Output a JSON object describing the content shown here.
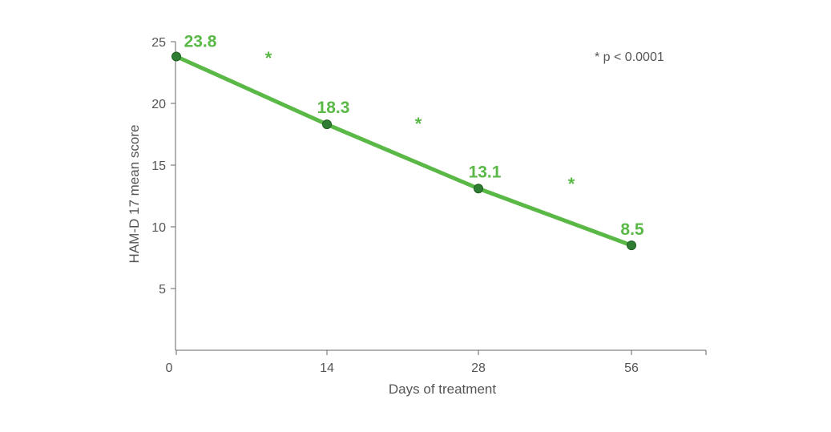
{
  "chart_data": {
    "type": "line",
    "xlabel": "Days of treatment",
    "ylabel": "HAM-D 17  mean score",
    "x_categories": [
      "0",
      "14",
      "28",
      "56"
    ],
    "ylim": [
      0,
      25
    ],
    "y_ticks": [
      5,
      10,
      15,
      20,
      25
    ],
    "series": [
      {
        "values": [
          23.8,
          18.3,
          13.1,
          8.5
        ],
        "labels": [
          "23.8",
          "18.3",
          "13.1",
          "8.5"
        ]
      }
    ],
    "significance_markers": [
      "*",
      "*",
      "*"
    ],
    "annotation": "* p < 0.0001",
    "grid": false,
    "line_color": "#5ab946",
    "marker_color": "#2e7d32",
    "label_color": "#5ab946",
    "axis_color": "#666666"
  }
}
